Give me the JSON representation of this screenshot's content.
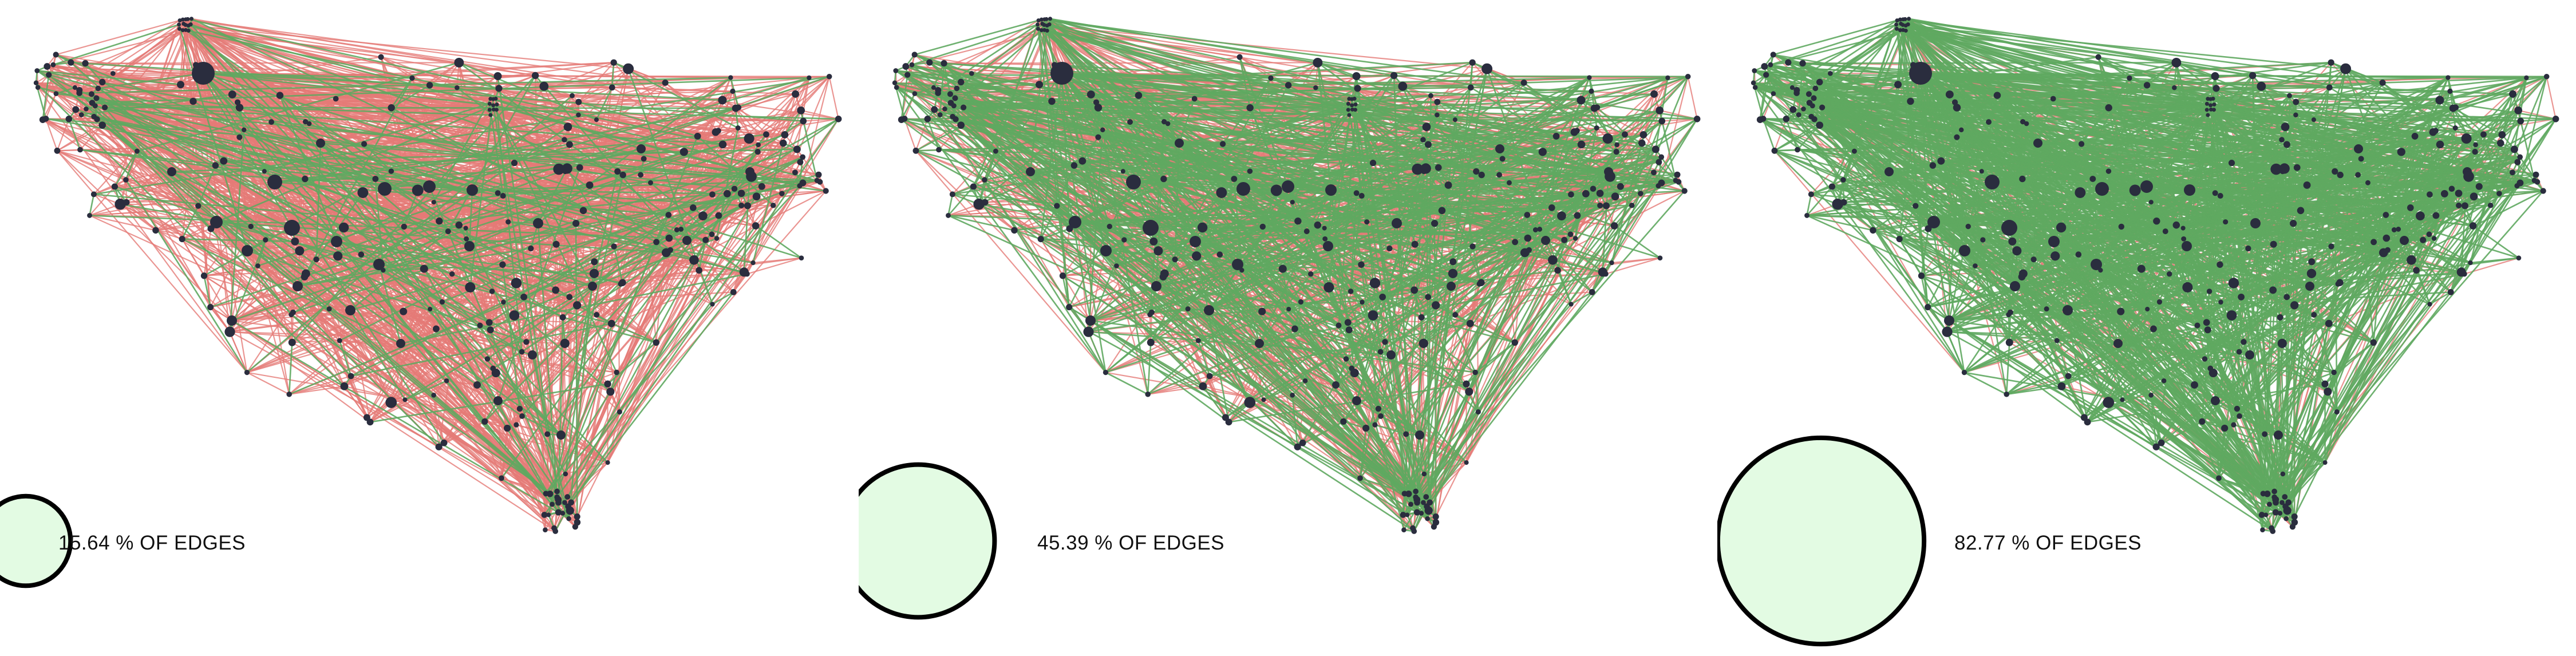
{
  "colors": {
    "background": "#ffffff",
    "edge_default": "#e57a77",
    "edge_highlight": "#5fa860",
    "node": "#2a2d3e",
    "legend_fill": "#e3fbe3",
    "legend_stroke": "#000000"
  },
  "chart_data": {
    "type": "network",
    "panels": [
      {
        "highlighted_edge_percent": 15.64,
        "label": "15.64 % OF EDGES"
      },
      {
        "highlighted_edge_percent": 45.39,
        "label": "45.39 % OF EDGES"
      },
      {
        "highlighted_edge_percent": 82.77,
        "label": "82.77 % OF EDGES"
      }
    ]
  }
}
